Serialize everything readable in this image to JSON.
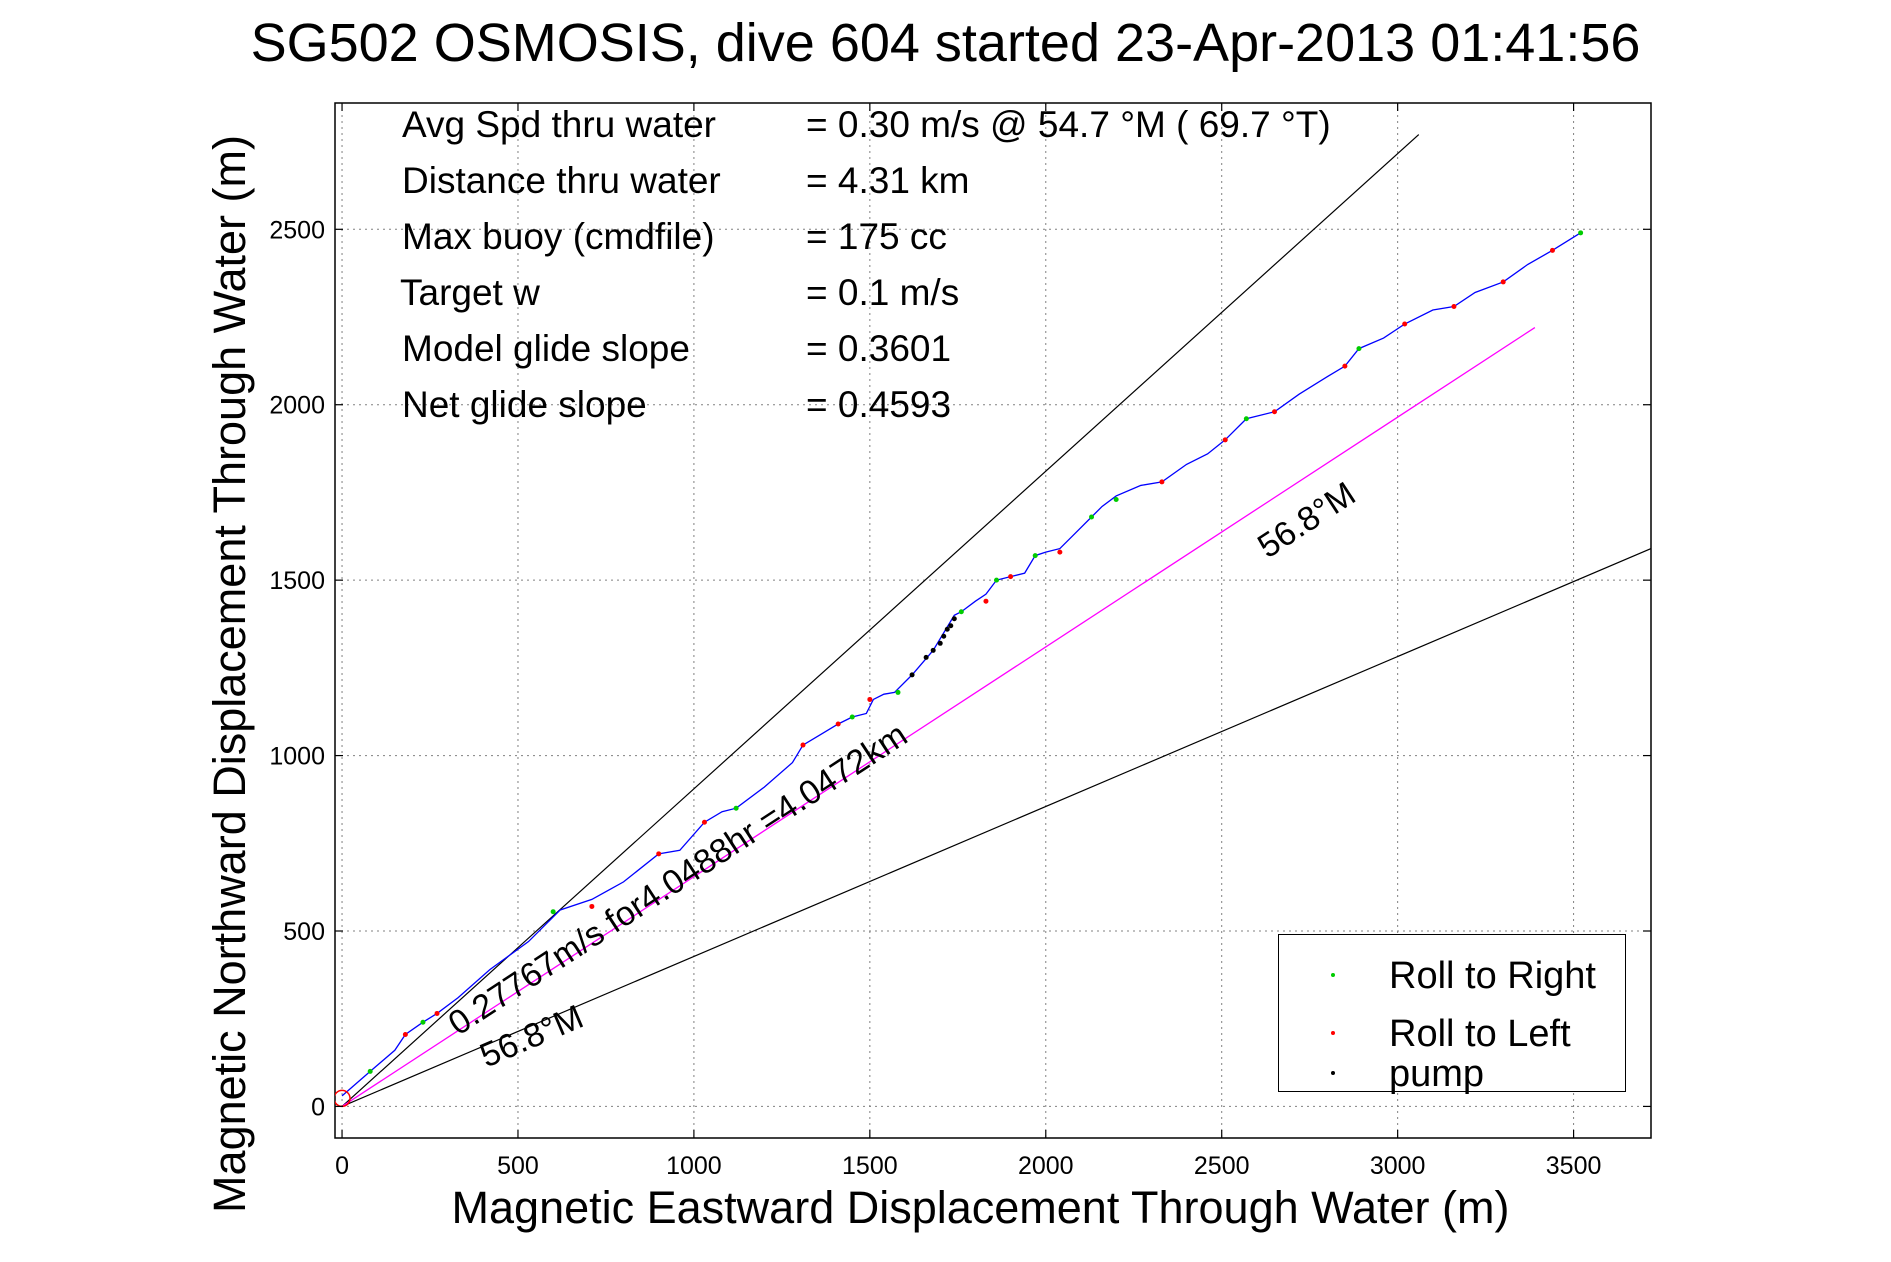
{
  "colors": {
    "axis": "#000000",
    "grid": "#808080",
    "track": "#0000ff",
    "roll_right": "#00cc00",
    "roll_left": "#ff0000",
    "pump": "#000000",
    "heading_line": "#ff00ff",
    "guide_line": "#000000"
  },
  "chart_data": {
    "type": "line",
    "title": "SG502 OSMOSIS, dive 604 started 23-Apr-2013 01:41:56",
    "xlabel": "Magnetic Eastward Displacement Through Water (m)",
    "ylabel": "Magnetic Northward Displacement Through Water (m)",
    "xlim": [
      -20,
      3720
    ],
    "ylim": [
      -90,
      2860
    ],
    "xticks": [
      0,
      500,
      1000,
      1500,
      2000,
      2500,
      3000,
      3500
    ],
    "yticks": [
      0,
      500,
      1000,
      1500,
      2000,
      2500
    ],
    "xtick_labels": [
      "0",
      "500",
      "1000",
      "1500",
      "2000",
      "2500",
      "3000",
      "3500"
    ],
    "ytick_labels": [
      "0",
      "500",
      "1000",
      "1500",
      "2000",
      "2500"
    ],
    "grid": true,
    "legend_position": "bottom-right",
    "legend": [
      "Roll to Right",
      "Roll to Left",
      "pump"
    ],
    "series": [
      {
        "name": "track",
        "color": "#0000ff",
        "x": [
          0,
          80,
          150,
          180,
          230,
          270,
          330,
          420,
          530,
          620,
          710,
          800,
          900,
          960,
          1030,
          1080,
          1120,
          1200,
          1280,
          1310,
          1360,
          1410,
          1450,
          1490,
          1510,
          1540,
          1570,
          1620,
          1680,
          1740,
          1760,
          1800,
          1830,
          1860,
          1900,
          1940,
          1970,
          2000,
          2040,
          2080,
          2130,
          2160,
          2200,
          2270,
          2330,
          2400,
          2460,
          2510,
          2570,
          2650,
          2720,
          2800,
          2850,
          2890,
          2960,
          3020,
          3100,
          3160,
          3220,
          3300,
          3370,
          3440,
          3520
        ],
        "y": [
          30,
          100,
          160,
          205,
          240,
          265,
          310,
          390,
          470,
          560,
          590,
          640,
          720,
          730,
          810,
          840,
          850,
          910,
          980,
          1030,
          1060,
          1090,
          1110,
          1120,
          1160,
          1175,
          1180,
          1230,
          1300,
          1400,
          1410,
          1440,
          1460,
          1500,
          1510,
          1520,
          1570,
          1580,
          1590,
          1630,
          1680,
          1710,
          1740,
          1770,
          1780,
          1830,
          1860,
          1900,
          1960,
          1980,
          2030,
          2080,
          2110,
          2160,
          2190,
          2230,
          2270,
          2280,
          2320,
          2350,
          2400,
          2440,
          2490
        ]
      },
      {
        "name": "heading",
        "color": "#ff00ff",
        "x": [
          0,
          3390
        ],
        "y": [
          0,
          2220
        ]
      }
    ],
    "markers": {
      "roll_right": {
        "x": [
          80,
          230,
          600,
          1120,
          1450,
          1580,
          1760,
          1860,
          1970,
          2130,
          2200,
          2570,
          2890,
          3520
        ],
        "y": [
          100,
          240,
          555,
          850,
          1110,
          1180,
          1410,
          1500,
          1570,
          1680,
          1730,
          1960,
          2160,
          2490
        ]
      },
      "roll_left": {
        "x": [
          180,
          270,
          710,
          900,
          1030,
          1310,
          1410,
          1500,
          1830,
          1900,
          2040,
          2330,
          2510,
          2650,
          2850,
          3020,
          3160,
          3300,
          3440
        ],
        "y": [
          205,
          265,
          570,
          720,
          810,
          1030,
          1090,
          1160,
          1440,
          1510,
          1580,
          1780,
          1900,
          1980,
          2110,
          2230,
          2280,
          2350,
          2440
        ]
      },
      "pump": {
        "x": [
          1620,
          1660,
          1680,
          1700,
          1710,
          1720,
          1730,
          1740
        ],
        "y": [
          1230,
          1280,
          1300,
          1320,
          1340,
          1360,
          1370,
          1390
        ]
      }
    },
    "guide_lines": [
      {
        "x": [
          0,
          3060
        ],
        "y": [
          0,
          2770
        ]
      },
      {
        "x": [
          0,
          3720
        ],
        "y": [
          0,
          1590
        ]
      }
    ],
    "annotations": [
      {
        "text": "56.8°M",
        "x": 2630,
        "y": 1560,
        "angle": 33.2
      },
      {
        "text": "0.27767m/s for4.0488hr =4.0472km",
        "x": 330,
        "y": 200,
        "angle": 33.2
      },
      {
        "text": "56.8°M",
        "x": 410,
        "y": 110,
        "angle": 23.1
      }
    ]
  },
  "info": {
    "rows": [
      {
        "label": "Avg Spd thru water",
        "value": "=  0.30 m/s @  54.7 °M ( 69.7 °T)"
      },
      {
        "label": "Distance thru water",
        "value": "=  4.31 km"
      },
      {
        "label": "Max buoy (cmdfile)",
        "value": "= 175 cc"
      },
      {
        "label": "Target w",
        "value": "= 0.1 m/s"
      },
      {
        "label": "Model glide slope",
        "value": "= 0.3601"
      },
      {
        "label": "Net glide slope",
        "value": "= 0.4593"
      }
    ]
  },
  "legend": {
    "roll_right": "Roll to Right",
    "roll_left": "Roll to Left",
    "pump": "pump"
  }
}
